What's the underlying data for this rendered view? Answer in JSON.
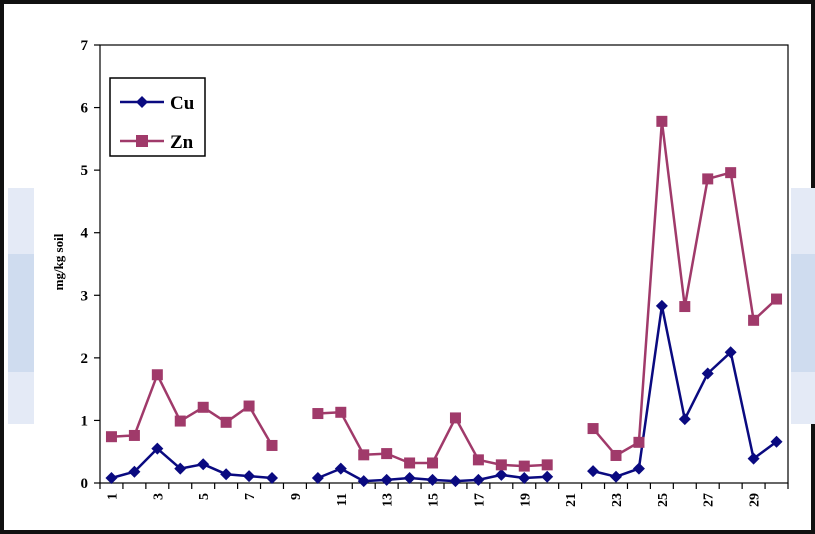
{
  "colors": {
    "cu": "#0a0a80",
    "zn": "#a03a6a",
    "axis": "#000000",
    "band_light": "#e4eaf6",
    "band_mid": "#cfdcef"
  },
  "chart_data": {
    "type": "line",
    "title": "",
    "xlabel": "",
    "ylabel": "mg/kg soil",
    "ylim": [
      0,
      7
    ],
    "yticks": [
      "0",
      "1",
      "2",
      "3",
      "4",
      "5",
      "6",
      "7"
    ],
    "xlim": [
      1,
      30
    ],
    "xtick_labels": [
      "1",
      "3",
      "5",
      "7",
      "9",
      "11",
      "13",
      "15",
      "17",
      "19",
      "21",
      "23",
      "25",
      "27",
      "29"
    ],
    "legend_position": "top-left",
    "grid": false,
    "x": [
      1,
      2,
      3,
      4,
      5,
      6,
      7,
      8,
      9,
      10,
      11,
      12,
      13,
      14,
      15,
      16,
      17,
      18,
      19,
      20,
      21,
      22,
      23,
      24,
      25,
      26,
      27,
      28,
      29,
      30
    ],
    "series": [
      {
        "name": "Cu",
        "marker": "diamond",
        "values": [
          0.08,
          0.18,
          0.55,
          0.23,
          0.3,
          0.14,
          0.11,
          0.08,
          null,
          0.08,
          0.23,
          0.03,
          0.05,
          0.08,
          0.05,
          0.03,
          0.05,
          0.13,
          0.08,
          0.1,
          null,
          0.19,
          0.1,
          0.23,
          2.83,
          1.02,
          1.75,
          2.09,
          0.39,
          0.66
        ]
      },
      {
        "name": "Zn",
        "marker": "square",
        "values": [
          0.74,
          0.76,
          1.73,
          0.99,
          1.21,
          0.97,
          1.23,
          0.6,
          null,
          1.11,
          1.13,
          0.45,
          0.47,
          0.32,
          0.32,
          1.04,
          0.37,
          0.29,
          0.27,
          0.29,
          null,
          0.87,
          0.44,
          0.65,
          5.78,
          2.82,
          4.86,
          4.96,
          2.6,
          2.94
        ]
      }
    ]
  }
}
